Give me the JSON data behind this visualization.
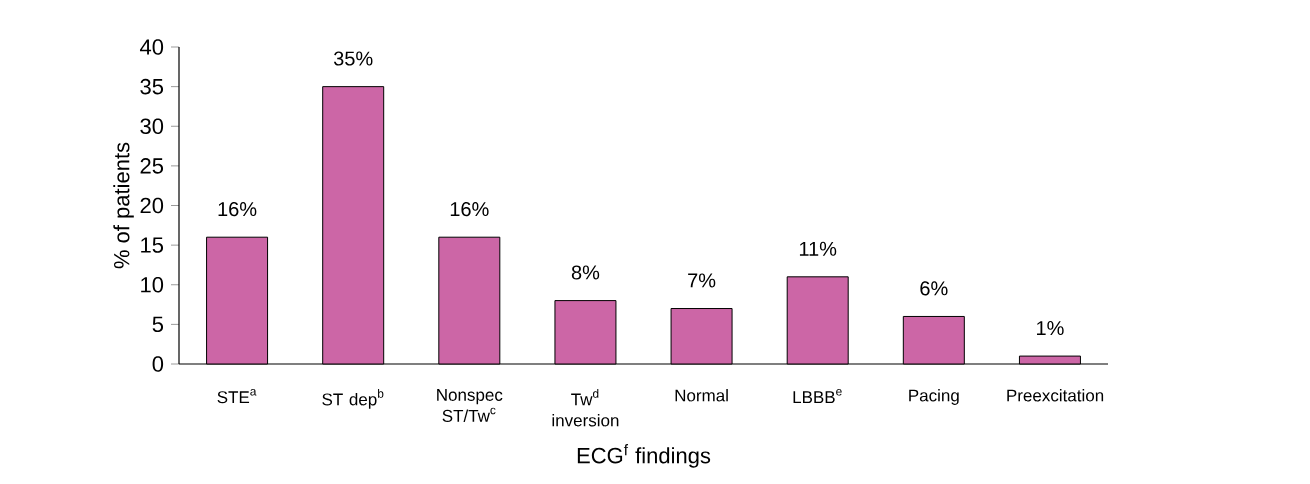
{
  "chart_data": {
    "type": "bar",
    "xlabel": "ECG$^{f}$ findings",
    "ylabel": "% of patients",
    "categories": [
      "STE$^{a}$",
      "ST dep$^{b}$",
      "Nonspec ST/Tw$^{c}$",
      "Tw$^{d}$ inversion",
      "Normal",
      "LBBB$^{e}$",
      "Pacing",
      "Preexcitation"
    ],
    "values": [
      16,
      35,
      16,
      8,
      7,
      11,
      6,
      1
    ],
    "value_labels": [
      "16%",
      "35%",
      "16%",
      "8%",
      "7%",
      "11%",
      "6%",
      "1%"
    ],
    "color": "#cc66a6",
    "ylim": [
      0,
      40
    ],
    "yticks": [
      0,
      5,
      10,
      15,
      20,
      25,
      30,
      35,
      40
    ],
    "grid": false
  }
}
